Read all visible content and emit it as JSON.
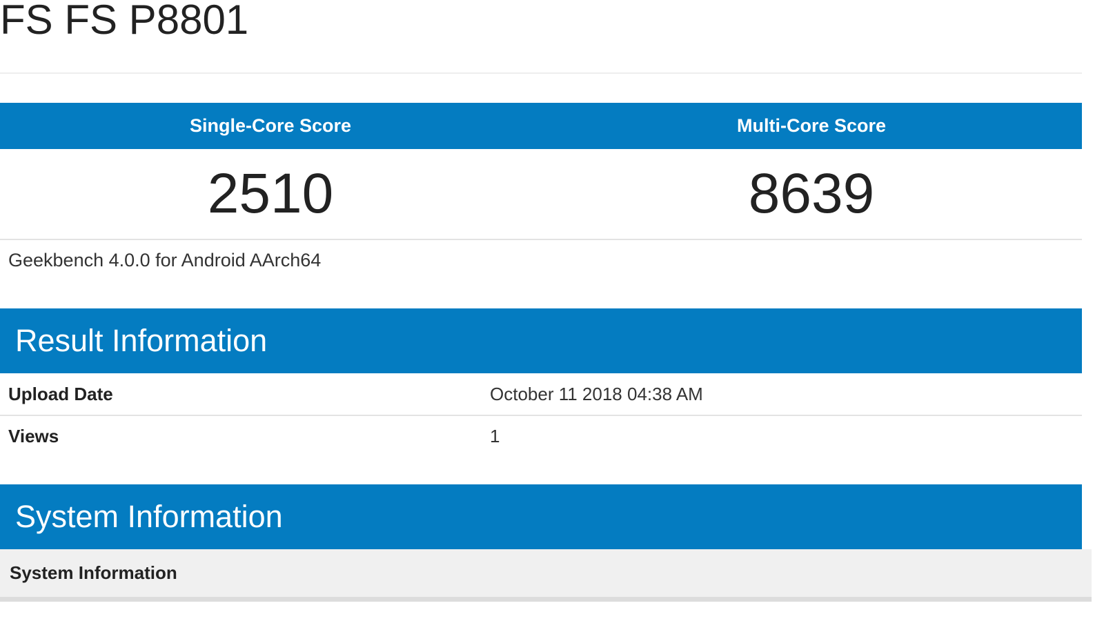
{
  "title": "FS FS P8801",
  "scores": {
    "single_label": "Single-Core Score",
    "multi_label": "Multi-Core Score",
    "single_value": "2510",
    "multi_value": "8639"
  },
  "version": "Geekbench 4.0.0 for Android AArch64",
  "result_info": {
    "heading": "Result Information",
    "rows": [
      {
        "label": "Upload Date",
        "value": "October 11 2018 04:38 AM"
      },
      {
        "label": "Views",
        "value": "1"
      }
    ]
  },
  "system_info": {
    "heading": "System Information",
    "subheading": "System Information"
  },
  "colors": {
    "accent": "#047cc1",
    "subheader_bg": "#f0f0f0"
  }
}
